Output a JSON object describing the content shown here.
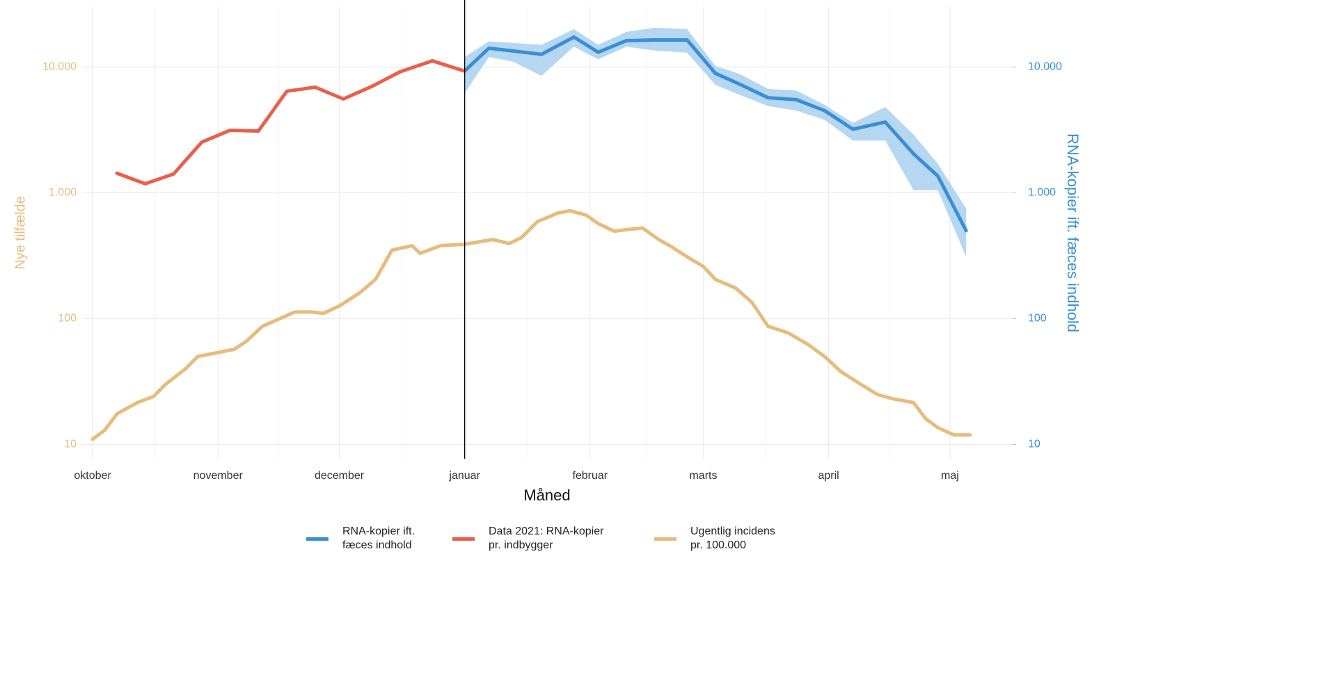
{
  "chart_data": {
    "type": "line",
    "x_label": "Måned",
    "y_label": "Nye tilfælde",
    "y2_label": "RNA-kopier ift. fæces indhold",
    "log_y": true,
    "grid": true,
    "xlim": [
      -2.6,
      227.5
    ],
    "xticks": [
      {
        "value": 0,
        "label": "oktober"
      },
      {
        "value": 31,
        "label": "november"
      },
      {
        "value": 61,
        "label": "december"
      },
      {
        "value": 92,
        "label": "januar"
      },
      {
        "value": 123,
        "label": "februar"
      },
      {
        "value": 151,
        "label": "marts"
      },
      {
        "value": 182,
        "label": "april"
      },
      {
        "value": 212,
        "label": "maj"
      }
    ],
    "ylim": [
      7.7,
      30000
    ],
    "yticks": [
      10,
      100,
      {
        "value": 1000,
        "label": "1.000"
      },
      {
        "value": 10000,
        "label": "10.000"
      }
    ],
    "y2lim": [
      7.7,
      30000
    ],
    "y2ticks": [
      10,
      100,
      {
        "value": 1000,
        "label": "1.000"
      },
      {
        "value": 10000,
        "label": "10.000"
      }
    ],
    "vline_x": 92,
    "series": [
      {
        "name": "RNA-kopier ift.\nfæces indhold",
        "color": "#3a8fd4",
        "band_color": "#b5d7f2",
        "axis": "y2",
        "x": [
          92,
          98,
          104,
          111,
          119,
          125,
          132,
          139,
          147,
          154,
          160,
          167,
          174,
          181,
          188,
          196,
          203,
          209,
          216
        ],
        "values": [
          9300,
          14100,
          13400,
          12600,
          17300,
          13100,
          16200,
          16400,
          16400,
          8900,
          7300,
          5700,
          5500,
          4500,
          3200,
          3650,
          2040,
          1360,
          500
        ],
        "lower": [
          6200,
          12000,
          11000,
          8500,
          14500,
          11500,
          14500,
          13500,
          13000,
          7200,
          6000,
          4900,
          4500,
          3800,
          2600,
          2600,
          1050,
          1050,
          310
        ],
        "upper": [
          12000,
          16000,
          15500,
          15000,
          20000,
          15000,
          19000,
          20500,
          20000,
          10200,
          8800,
          6700,
          6500,
          5000,
          3600,
          4800,
          2900,
          1700,
          750
        ]
      },
      {
        "name": "Data 2021: RNA-kopier\npr. indbygger",
        "color": "#e8604c",
        "x": [
          6,
          13,
          20,
          27,
          34,
          41,
          48,
          55,
          62,
          69,
          76,
          84,
          92
        ],
        "values": [
          1430,
          1180,
          1410,
          2530,
          3140,
          3100,
          6410,
          6910,
          5570,
          7000,
          9150,
          11200,
          9260
        ]
      },
      {
        "name": "Ugentlig incidens\npr. 100.000",
        "color": "#e6bc7e",
        "x": [
          0,
          3,
          6,
          11,
          15,
          18,
          23,
          26,
          30,
          35,
          38,
          42,
          46,
          50,
          54,
          57,
          61,
          66,
          70,
          74,
          79,
          81,
          86,
          92,
          96,
          99,
          103,
          106,
          110,
          115,
          118,
          122,
          125,
          129,
          132,
          136,
          140,
          143,
          147,
          151,
          154,
          159,
          163,
          167,
          172,
          177,
          181,
          185,
          190,
          194,
          198,
          203,
          206,
          209,
          213,
          217
        ],
        "values": [
          11,
          13,
          17.5,
          21.5,
          24,
          30,
          40,
          50,
          53,
          57,
          66,
          87,
          99,
          113,
          113,
          110,
          126,
          160,
          206,
          350,
          380,
          330,
          380,
          390,
          410,
          425,
          395,
          440,
          590,
          690,
          720,
          665,
          570,
          495,
          510,
          525,
          425,
          375,
          310,
          260,
          205,
          175,
          135,
          87,
          77,
          62,
          50,
          38,
          30,
          25,
          23,
          21.5,
          16,
          13.6,
          11.9,
          11.9
        ]
      }
    ]
  }
}
